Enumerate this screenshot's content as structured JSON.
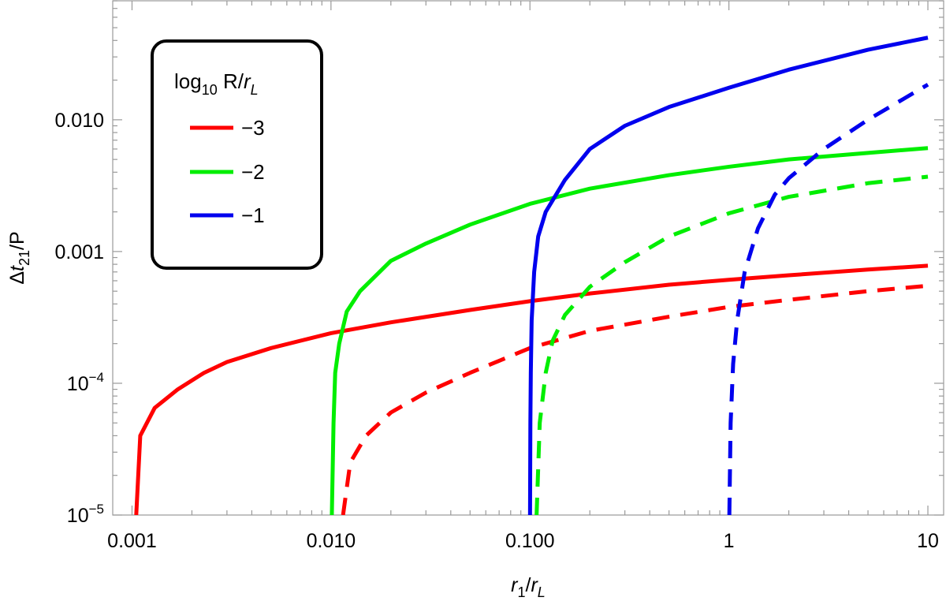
{
  "chart_data": {
    "type": "line",
    "title": "",
    "xlabel": {
      "main": "r",
      "main_sub": "1",
      "denom": "r",
      "denom_sub": "L",
      "mid": "/"
    },
    "ylabel": {
      "prefix": "Δ",
      "main": "t",
      "main_sub": "21",
      "suffix": "/P"
    },
    "x_scale": "log",
    "y_scale": "log",
    "xlim": [
      0.0008,
      12
    ],
    "ylim": [
      1e-05,
      0.08
    ],
    "grid": false,
    "x_ticks": [
      {
        "value": 0.001,
        "label": "0.001"
      },
      {
        "value": 0.01,
        "label": "0.010"
      },
      {
        "value": 0.1,
        "label": "0.100"
      },
      {
        "value": 1,
        "label": "1"
      },
      {
        "value": 10,
        "label": "10"
      }
    ],
    "y_ticks": [
      {
        "value": 1e-05,
        "base": "10",
        "exp": "−5",
        "label": ""
      },
      {
        "value": 0.0001,
        "base": "10",
        "exp": "−4",
        "label": ""
      },
      {
        "value": 0.001,
        "base": "",
        "exp": "",
        "label": "0.001"
      },
      {
        "value": 0.01,
        "base": "",
        "exp": "",
        "label": "0.010"
      }
    ],
    "legend": {
      "position": "top-left",
      "title_parts": {
        "log": "log",
        "log_sub": "10",
        "mid": " R/",
        "r": "r",
        "r_sub": "L"
      },
      "entries": [
        {
          "label": "−3",
          "color": "#ff0000"
        },
        {
          "label": "−2",
          "color": "#00ee00"
        },
        {
          "label": "−1",
          "color": "#0000ee"
        }
      ]
    },
    "series": [
      {
        "color": "#ff0000",
        "style": "solid",
        "points": [
          [
            0.00105,
            1e-05
          ],
          [
            0.0011,
            4e-05
          ],
          [
            0.0013,
            6.5e-05
          ],
          [
            0.0017,
            9e-05
          ],
          [
            0.0023,
            0.00012
          ],
          [
            0.003,
            0.000145
          ],
          [
            0.005,
            0.000185
          ],
          [
            0.01,
            0.00024
          ],
          [
            0.02,
            0.00029
          ],
          [
            0.05,
            0.00036
          ],
          [
            0.1,
            0.00042
          ],
          [
            0.2,
            0.00048
          ],
          [
            0.5,
            0.00056
          ],
          [
            1,
            0.00061
          ],
          [
            2,
            0.00066
          ],
          [
            5,
            0.00073
          ],
          [
            10,
            0.00078
          ]
        ]
      },
      {
        "color": "#ff0000",
        "style": "dashed",
        "points": [
          [
            0.0115,
            1e-05
          ],
          [
            0.0125,
            2.5e-05
          ],
          [
            0.015,
            4e-05
          ],
          [
            0.02,
            6e-05
          ],
          [
            0.03,
            8.5e-05
          ],
          [
            0.05,
            0.00012
          ],
          [
            0.1,
            0.000185
          ],
          [
            0.2,
            0.00025
          ],
          [
            0.5,
            0.00032
          ],
          [
            1,
            0.00038
          ],
          [
            2,
            0.00043
          ],
          [
            5,
            0.0005
          ],
          [
            10,
            0.00055
          ]
        ]
      },
      {
        "color": "#00ee00",
        "style": "solid",
        "points": [
          [
            0.0101,
            1e-05
          ],
          [
            0.0103,
            5e-05
          ],
          [
            0.0105,
            0.00012
          ],
          [
            0.011,
            0.0002
          ],
          [
            0.012,
            0.00035
          ],
          [
            0.014,
            0.0005
          ],
          [
            0.02,
            0.00085
          ],
          [
            0.03,
            0.00115
          ],
          [
            0.05,
            0.0016
          ],
          [
            0.1,
            0.0023
          ],
          [
            0.2,
            0.003
          ],
          [
            0.5,
            0.0038
          ],
          [
            1,
            0.0044
          ],
          [
            2,
            0.005
          ],
          [
            5,
            0.0056
          ],
          [
            10,
            0.0061
          ]
        ]
      },
      {
        "color": "#00ee00",
        "style": "dashed",
        "points": [
          [
            0.108,
            1e-05
          ],
          [
            0.112,
            5e-05
          ],
          [
            0.12,
            0.00012
          ],
          [
            0.13,
            0.00021
          ],
          [
            0.15,
            0.00033
          ],
          [
            0.2,
            0.00054
          ],
          [
            0.3,
            0.00083
          ],
          [
            0.5,
            0.0013
          ],
          [
            1,
            0.00195
          ],
          [
            2,
            0.0026
          ],
          [
            5,
            0.0033
          ],
          [
            10,
            0.0037
          ]
        ]
      },
      {
        "color": "#0000ee",
        "style": "solid",
        "points": [
          [
            0.1001,
            1e-05
          ],
          [
            0.1005,
            5e-05
          ],
          [
            0.101,
            0.00012
          ],
          [
            0.102,
            0.0003
          ],
          [
            0.105,
            0.0007
          ],
          [
            0.11,
            0.0013
          ],
          [
            0.12,
            0.002
          ],
          [
            0.15,
            0.0035
          ],
          [
            0.2,
            0.006
          ],
          [
            0.3,
            0.009
          ],
          [
            0.5,
            0.0125
          ],
          [
            1,
            0.0175
          ],
          [
            2,
            0.024
          ],
          [
            5,
            0.034
          ],
          [
            10,
            0.042
          ]
        ]
      },
      {
        "color": "#0000ee",
        "style": "dashed",
        "points": [
          [
            1.005,
            1e-05
          ],
          [
            1.02,
            5e-05
          ],
          [
            1.05,
            0.00014
          ],
          [
            1.1,
            0.0003
          ],
          [
            1.2,
            0.0007
          ],
          [
            1.4,
            0.0015
          ],
          [
            1.7,
            0.0027
          ],
          [
            2,
            0.0036
          ],
          [
            3,
            0.006
          ],
          [
            5,
            0.01
          ],
          [
            10,
            0.0185
          ]
        ]
      }
    ]
  }
}
